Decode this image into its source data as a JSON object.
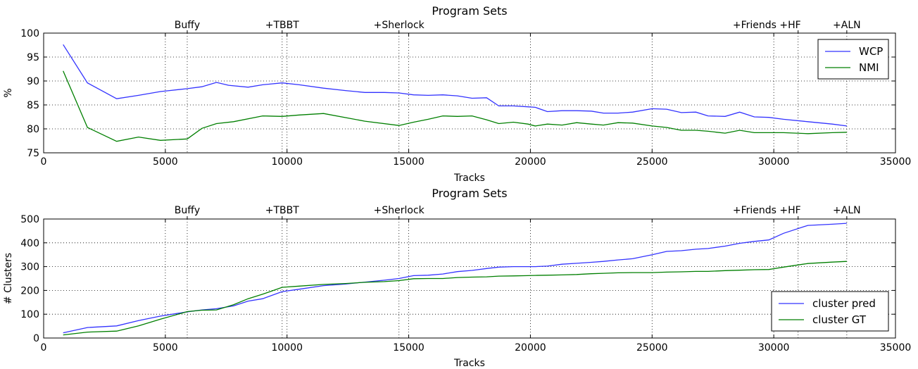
{
  "chart_data": [
    {
      "type": "line",
      "title": "Program Sets",
      "xlabel": "Tracks",
      "ylabel": "%",
      "xlim": [
        0,
        35000
      ],
      "ylim": [
        75,
        100
      ],
      "xticks": [
        0,
        5000,
        10000,
        15000,
        20000,
        25000,
        30000,
        35000
      ],
      "yticks": [
        75,
        80,
        85,
        90,
        95,
        100
      ],
      "grid": true,
      "legend": "top-right",
      "top_ticks": [
        {
          "x": 5900,
          "label": "Buffy"
        },
        {
          "x": 9800,
          "label": "+TBBT"
        },
        {
          "x": 14600,
          "label": "+Sherlock"
        },
        {
          "x": 31000,
          "label": "+Friends +HF"
        },
        {
          "x": 33000,
          "label": "+ALN"
        }
      ],
      "series": [
        {
          "name": "WCP",
          "color": "#3333ff",
          "points": [
            [
              800,
              97.6
            ],
            [
              1800,
              89.6
            ],
            [
              3000,
              86.3
            ],
            [
              3900,
              87.0
            ],
            [
              4800,
              87.8
            ],
            [
              5900,
              88.4
            ],
            [
              6500,
              88.8
            ],
            [
              7100,
              89.7
            ],
            [
              7600,
              89.1
            ],
            [
              8400,
              88.7
            ],
            [
              9000,
              89.2
            ],
            [
              9800,
              89.6
            ],
            [
              10500,
              89.2
            ],
            [
              11500,
              88.5
            ],
            [
              12400,
              88.0
            ],
            [
              13200,
              87.6
            ],
            [
              14000,
              87.6
            ],
            [
              14600,
              87.5
            ],
            [
              15200,
              87.1
            ],
            [
              15800,
              87.0
            ],
            [
              16400,
              87.1
            ],
            [
              17000,
              86.9
            ],
            [
              17600,
              86.4
            ],
            [
              18200,
              86.5
            ],
            [
              18700,
              84.8
            ],
            [
              19300,
              84.8
            ],
            [
              19900,
              84.6
            ],
            [
              20200,
              84.5
            ],
            [
              20700,
              83.6
            ],
            [
              21300,
              83.8
            ],
            [
              21900,
              83.8
            ],
            [
              22500,
              83.7
            ],
            [
              23000,
              83.3
            ],
            [
              23600,
              83.3
            ],
            [
              24200,
              83.5
            ],
            [
              25000,
              84.2
            ],
            [
              25600,
              84.1
            ],
            [
              26200,
              83.4
            ],
            [
              26800,
              83.5
            ],
            [
              27300,
              82.7
            ],
            [
              28000,
              82.6
            ],
            [
              28600,
              83.5
            ],
            [
              29200,
              82.5
            ],
            [
              29800,
              82.4
            ],
            [
              30400,
              82.0
            ],
            [
              31400,
              81.5
            ],
            [
              32400,
              81.0
            ],
            [
              33000,
              80.6
            ]
          ]
        },
        {
          "name": "NMI",
          "color": "#007f00",
          "points": [
            [
              800,
              92.1
            ],
            [
              1800,
              80.3
            ],
            [
              3000,
              77.4
            ],
            [
              3900,
              78.3
            ],
            [
              4800,
              77.6
            ],
            [
              5900,
              77.9
            ],
            [
              6500,
              80.1
            ],
            [
              7100,
              81.1
            ],
            [
              7800,
              81.5
            ],
            [
              9000,
              82.7
            ],
            [
              9800,
              82.6
            ],
            [
              10500,
              82.9
            ],
            [
              11500,
              83.2
            ],
            [
              13200,
              81.6
            ],
            [
              14600,
              80.7
            ],
            [
              15200,
              81.4
            ],
            [
              15800,
              82.0
            ],
            [
              16400,
              82.7
            ],
            [
              17000,
              82.6
            ],
            [
              17600,
              82.7
            ],
            [
              18200,
              81.9
            ],
            [
              18700,
              81.1
            ],
            [
              19300,
              81.4
            ],
            [
              19900,
              81.0
            ],
            [
              20200,
              80.6
            ],
            [
              20700,
              81.0
            ],
            [
              21300,
              80.8
            ],
            [
              21900,
              81.3
            ],
            [
              22500,
              81.0
            ],
            [
              23000,
              80.8
            ],
            [
              23600,
              81.3
            ],
            [
              24200,
              81.2
            ],
            [
              25000,
              80.6
            ],
            [
              25600,
              80.3
            ],
            [
              26200,
              79.7
            ],
            [
              26800,
              79.7
            ],
            [
              27300,
              79.5
            ],
            [
              28000,
              79.1
            ],
            [
              28600,
              79.7
            ],
            [
              29200,
              79.2
            ],
            [
              30400,
              79.2
            ],
            [
              31400,
              79.0
            ],
            [
              32400,
              79.2
            ],
            [
              33000,
              79.3
            ]
          ]
        }
      ]
    },
    {
      "type": "line",
      "title": "Program Sets",
      "xlabel": "Tracks",
      "ylabel": "# Clusters",
      "xlim": [
        0,
        35000
      ],
      "ylim": [
        0,
        500
      ],
      "xticks": [
        0,
        5000,
        10000,
        15000,
        20000,
        25000,
        30000,
        35000
      ],
      "yticks": [
        0,
        100,
        200,
        300,
        400,
        500
      ],
      "grid": true,
      "legend": "bottom-right",
      "top_ticks": [
        {
          "x": 5900,
          "label": "Buffy"
        },
        {
          "x": 9800,
          "label": "+TBBT"
        },
        {
          "x": 14600,
          "label": "+Sherlock"
        },
        {
          "x": 31000,
          "label": "+Friends +HF"
        },
        {
          "x": 33000,
          "label": "+ALN"
        }
      ],
      "series": [
        {
          "name": "cluster pred",
          "color": "#3333ff",
          "points": [
            [
              800,
              22
            ],
            [
              1800,
              44
            ],
            [
              3000,
              51
            ],
            [
              3900,
              73
            ],
            [
              4800,
              92
            ],
            [
              5900,
              110
            ],
            [
              6500,
              118
            ],
            [
              7100,
              123
            ],
            [
              7800,
              135
            ],
            [
              8400,
              155
            ],
            [
              9000,
              165
            ],
            [
              9800,
              195
            ],
            [
              10500,
              205
            ],
            [
              11500,
              220
            ],
            [
              12400,
              227
            ],
            [
              13200,
              235
            ],
            [
              14000,
              243
            ],
            [
              14600,
              250
            ],
            [
              15200,
              262
            ],
            [
              15800,
              264
            ],
            [
              16400,
              269
            ],
            [
              17000,
              279
            ],
            [
              17600,
              284
            ],
            [
              18200,
              292
            ],
            [
              18700,
              298
            ],
            [
              19300,
              300
            ],
            [
              19900,
              300
            ],
            [
              20200,
              300
            ],
            [
              20700,
              302
            ],
            [
              21300,
              310
            ],
            [
              21900,
              314
            ],
            [
              22500,
              318
            ],
            [
              23000,
              322
            ],
            [
              23600,
              328
            ],
            [
              24200,
              333
            ],
            [
              25000,
              350
            ],
            [
              25600,
              364
            ],
            [
              26200,
              367
            ],
            [
              26800,
              373
            ],
            [
              27300,
              376
            ],
            [
              28000,
              386
            ],
            [
              28600,
              398
            ],
            [
              29200,
              406
            ],
            [
              29800,
              412
            ],
            [
              30400,
              440
            ],
            [
              31400,
              473
            ],
            [
              32400,
              478
            ],
            [
              33000,
              482
            ]
          ]
        },
        {
          "name": "cluster GT",
          "color": "#007f00",
          "points": [
            [
              800,
              13
            ],
            [
              1800,
              25
            ],
            [
              3000,
              29
            ],
            [
              3900,
              51
            ],
            [
              4800,
              79
            ],
            [
              5900,
              111
            ],
            [
              6500,
              117
            ],
            [
              7100,
              118
            ],
            [
              7800,
              140
            ],
            [
              8400,
              165
            ],
            [
              9000,
              184
            ],
            [
              9800,
              213
            ],
            [
              10500,
              218
            ],
            [
              11500,
              225
            ],
            [
              12400,
              229
            ],
            [
              13200,
              234
            ],
            [
              14000,
              237
            ],
            [
              14600,
              241
            ],
            [
              15200,
              249
            ],
            [
              15800,
              250
            ],
            [
              16400,
              250
            ],
            [
              17000,
              254
            ],
            [
              17600,
              256
            ],
            [
              18200,
              257
            ],
            [
              18700,
              260
            ],
            [
              19300,
              261
            ],
            [
              19900,
              262
            ],
            [
              20200,
              263
            ],
            [
              20700,
              264
            ],
            [
              21300,
              265
            ],
            [
              21900,
              267
            ],
            [
              22500,
              270
            ],
            [
              23000,
              272
            ],
            [
              23600,
              274
            ],
            [
              24200,
              275
            ],
            [
              25000,
              275
            ],
            [
              25600,
              277
            ],
            [
              26200,
              278
            ],
            [
              26800,
              280
            ],
            [
              27300,
              280
            ],
            [
              28000,
              283
            ],
            [
              28600,
              285
            ],
            [
              29200,
              287
            ],
            [
              29800,
              288
            ],
            [
              30400,
              298
            ],
            [
              31400,
              313
            ],
            [
              32400,
              319
            ],
            [
              33000,
              322
            ]
          ]
        }
      ]
    }
  ]
}
